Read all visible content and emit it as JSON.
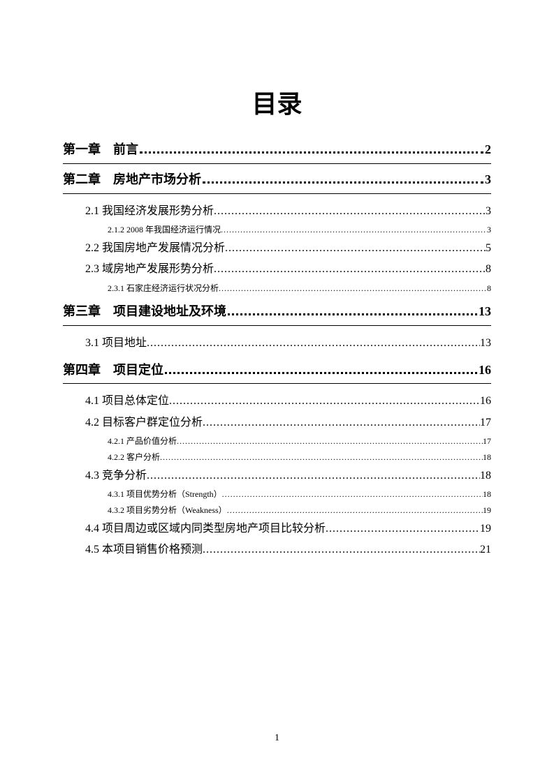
{
  "title": "目录",
  "page_number": "1",
  "entries": [
    {
      "level": "chapter",
      "label": "第一章　前言",
      "page": "2"
    },
    {
      "level": "chapter",
      "label": "第二章　房地产市场分析",
      "page": "3"
    },
    {
      "level": "section",
      "label": "2.1 我国经济发展形势分析",
      "page": "3"
    },
    {
      "level": "sub",
      "label": "2.1.2 2008 年我国经济运行情况",
      "page": "3"
    },
    {
      "level": "section",
      "label": "2.2  我国房地产发展情况分析",
      "page": "5"
    },
    {
      "level": "section",
      "label": "2.3 域房地产发展形势分析",
      "page": "8"
    },
    {
      "level": "sub",
      "label": "2.3.1 石家庄经济运行状况分析",
      "page": "8"
    },
    {
      "level": "chapter",
      "label": "第三章　项目建设地址及环境",
      "page": "13"
    },
    {
      "level": "section",
      "label": "3.1 项目地址",
      "page": "13"
    },
    {
      "level": "chapter",
      "label": "第四章　项目定位",
      "page": "16"
    },
    {
      "level": "section",
      "label": "4.1 项目总体定位",
      "page": "16"
    },
    {
      "level": "section",
      "label": "4.2 目标客户群定位分析",
      "page": "17"
    },
    {
      "level": "sub",
      "label": "4.2.1 产品价值分析",
      "page": "17"
    },
    {
      "level": "sub",
      "label": "4.2.2 客户分析",
      "page": "18"
    },
    {
      "level": "section",
      "label": "4.3 竞争分析",
      "page": "18"
    },
    {
      "level": "sub",
      "label": "4.3.1 项目优势分析（Strength）",
      "page": "18"
    },
    {
      "level": "sub",
      "label": "4.3.2 项目劣势分析（Weakness）",
      "page": "19"
    },
    {
      "level": "section",
      "label": "4.4  项目周边或区域内同类型房地产项目比较分析",
      "page": "19"
    },
    {
      "level": "section",
      "label": "4.5 本项目销售价格预测",
      "page": "21"
    }
  ]
}
